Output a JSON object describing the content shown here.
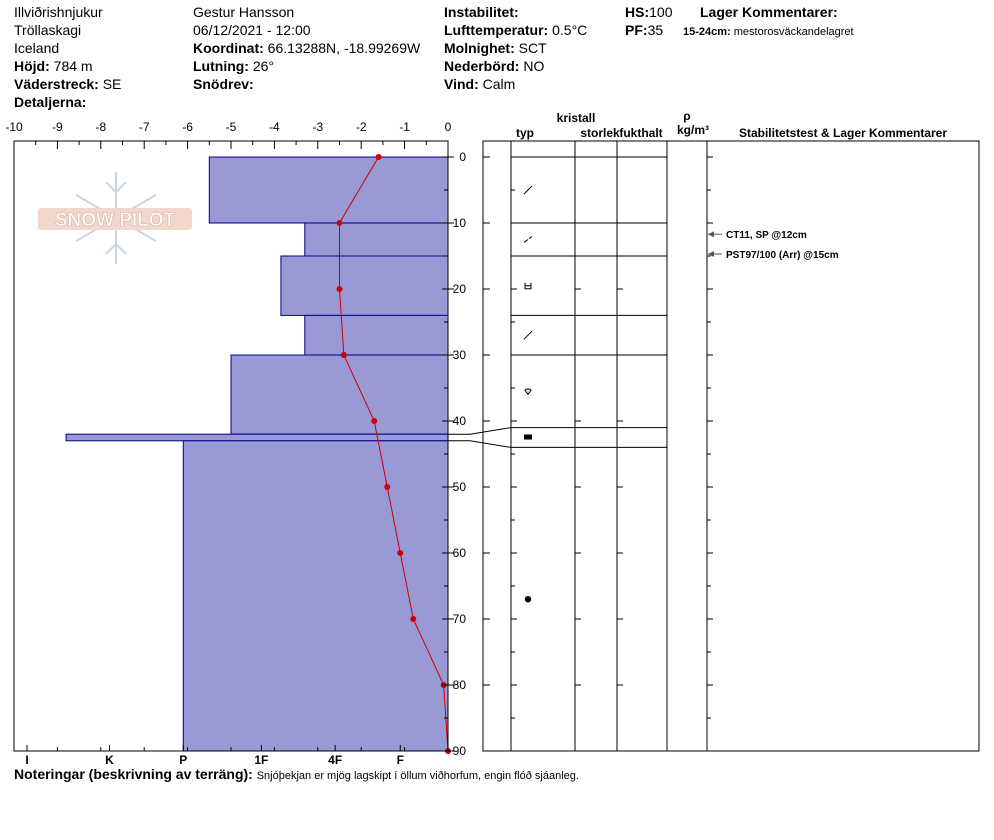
{
  "header": {
    "location": "Illviðrishnjukur",
    "region": "Tröllaskagi",
    "country": "Iceland",
    "elevation_label": "Höjd:",
    "elevation": "784 m",
    "aspect_label": "Väderstreck:",
    "aspect": "SE",
    "details_label": "Detaljerna:",
    "observer": "Gestur Hansson",
    "datetime": "06/12/2021 - 12:00",
    "coord_label": "Koordinat:",
    "coord": "66.13288N, -18.99269W",
    "slope_label": "Lutning:",
    "slope": "26°",
    "drift_label": "Snödrev:",
    "instability_label": "Instabilitet:",
    "air_temp_label": "Lufttemperatur:",
    "air_temp": "0.5°C",
    "sky_label": "Molnighet:",
    "sky": "SCT",
    "precip_label": "Nederbörd:",
    "precip": "NO",
    "wind_label": "Vind:",
    "wind": "Calm",
    "hs_label": "HS:",
    "hs": "100",
    "pf_label": "PF:",
    "pf": "35",
    "layer_comments_label": "Lager Kommentarer:",
    "layer_comment_depth": "15-24cm:",
    "layer_comment_text": "mestorosväckandelagret"
  },
  "table_headers": {
    "type": "typ",
    "crystal": "kristall",
    "size": "storlek",
    "moisture": "fukthalt",
    "rho": "ρ",
    "density_unit": "kg/m³",
    "stability": "Stabilitetstest & Lager Kommentarer"
  },
  "logo_text": "SNOW PILOT",
  "notes_label": "Noteringar (beskrivning av terräng):",
  "notes_text": "Snjóþekjan er mjög lagskipt í öllum viðhorfum, engin flóð sjáanleg.",
  "stability_tests": [
    {
      "text": "CT11, SP @12cm",
      "depth": 12
    },
    {
      "text": "PST97/100 (Arr) @15cm",
      "depth": 15
    }
  ],
  "colors": {
    "hardness_fill": "#9999d6",
    "hardness_stroke": "#00008b",
    "temp_line": "#cc0000"
  },
  "chart_data": {
    "type": "area",
    "temperature_axis": {
      "label_ticks": [
        -10,
        -9,
        -8,
        -7,
        -6,
        -5,
        -4,
        -3,
        -2,
        -1,
        0
      ],
      "range": [
        -10,
        0
      ]
    },
    "depth_axis": {
      "ticks": [
        0,
        10,
        20,
        30,
        40,
        50,
        60,
        70,
        80,
        90
      ],
      "range": [
        0,
        90
      ]
    },
    "hardness_ticks": [
      "I",
      "K",
      "P",
      "1F",
      "4F",
      "F"
    ],
    "hardness_profile": [
      {
        "top": 0,
        "bottom": 10,
        "hardness": -5.5
      },
      {
        "top": 10,
        "bottom": 15,
        "hardness": -3.3
      },
      {
        "top": 15,
        "bottom": 24,
        "hardness": -3.85
      },
      {
        "top": 24,
        "bottom": 30,
        "hardness": -3.3
      },
      {
        "top": 30,
        "bottom": 42,
        "hardness": -5
      },
      {
        "top": 42,
        "bottom": 43,
        "hardness": -8.8
      },
      {
        "top": 43,
        "bottom": 90,
        "hardness": -6.1
      }
    ],
    "temperature_profile": [
      {
        "depth": 0,
        "temp": -1.6
      },
      {
        "depth": 10,
        "temp": -2.5
      },
      {
        "depth": 20,
        "temp": -2.5
      },
      {
        "depth": 30,
        "temp": -2.4
      },
      {
        "depth": 40,
        "temp": -1.7
      },
      {
        "depth": 50,
        "temp": -1.4
      },
      {
        "depth": 60,
        "temp": -1.1
      },
      {
        "depth": 70,
        "temp": -0.8
      },
      {
        "depth": 80,
        "temp": -0.1
      },
      {
        "depth": 90,
        "temp": 0
      }
    ],
    "layers_right": [
      {
        "top": 0,
        "bottom": 10,
        "symbol": "slash"
      },
      {
        "top": 10,
        "bottom": 15,
        "symbol": "slash-dash"
      },
      {
        "top": 15,
        "bottom": 24,
        "symbol": "cup"
      },
      {
        "top": 24,
        "bottom": 30,
        "symbol": "slash"
      },
      {
        "top": 30,
        "bottom": 41,
        "symbol": "rounded"
      },
      {
        "top": 41,
        "bottom": 44,
        "symbol": "crust"
      },
      {
        "top": 44,
        "bottom": 90,
        "symbol": "dot"
      }
    ]
  }
}
